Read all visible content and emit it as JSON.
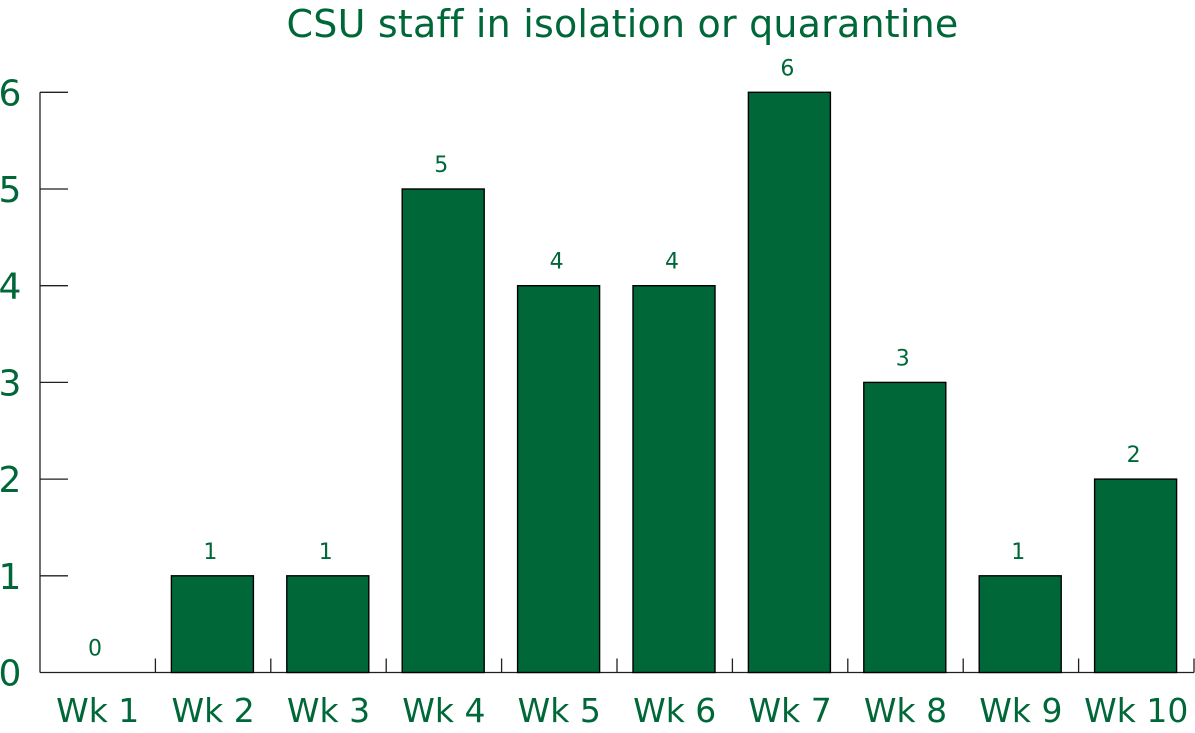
{
  "chart_data": {
    "type": "bar",
    "title": "CSU staff in isolation or quarantine",
    "xlabel": "",
    "ylabel": "",
    "categories": [
      "Wk 1",
      "Wk 2",
      "Wk 3",
      "Wk 4",
      "Wk 5",
      "Wk 6",
      "Wk 7",
      "Wk 8",
      "Wk 9",
      "Wk 10"
    ],
    "values": [
      0,
      1,
      1,
      5,
      4,
      4,
      6,
      3,
      1,
      2
    ],
    "data_labels": [
      "0",
      "1",
      "1",
      "5",
      "4",
      "4",
      "6",
      "3",
      "1",
      "2"
    ],
    "ylim": [
      0,
      6
    ],
    "yticks": [
      0,
      1,
      2,
      3,
      4,
      5,
      6
    ],
    "ytick_labels": [
      "0",
      "1",
      "2",
      "3",
      "4",
      "5",
      "6"
    ],
    "grid": false,
    "legend": "none",
    "colors": {
      "bar": "#006838",
      "text": "#006838",
      "axis": "#231f20"
    }
  }
}
